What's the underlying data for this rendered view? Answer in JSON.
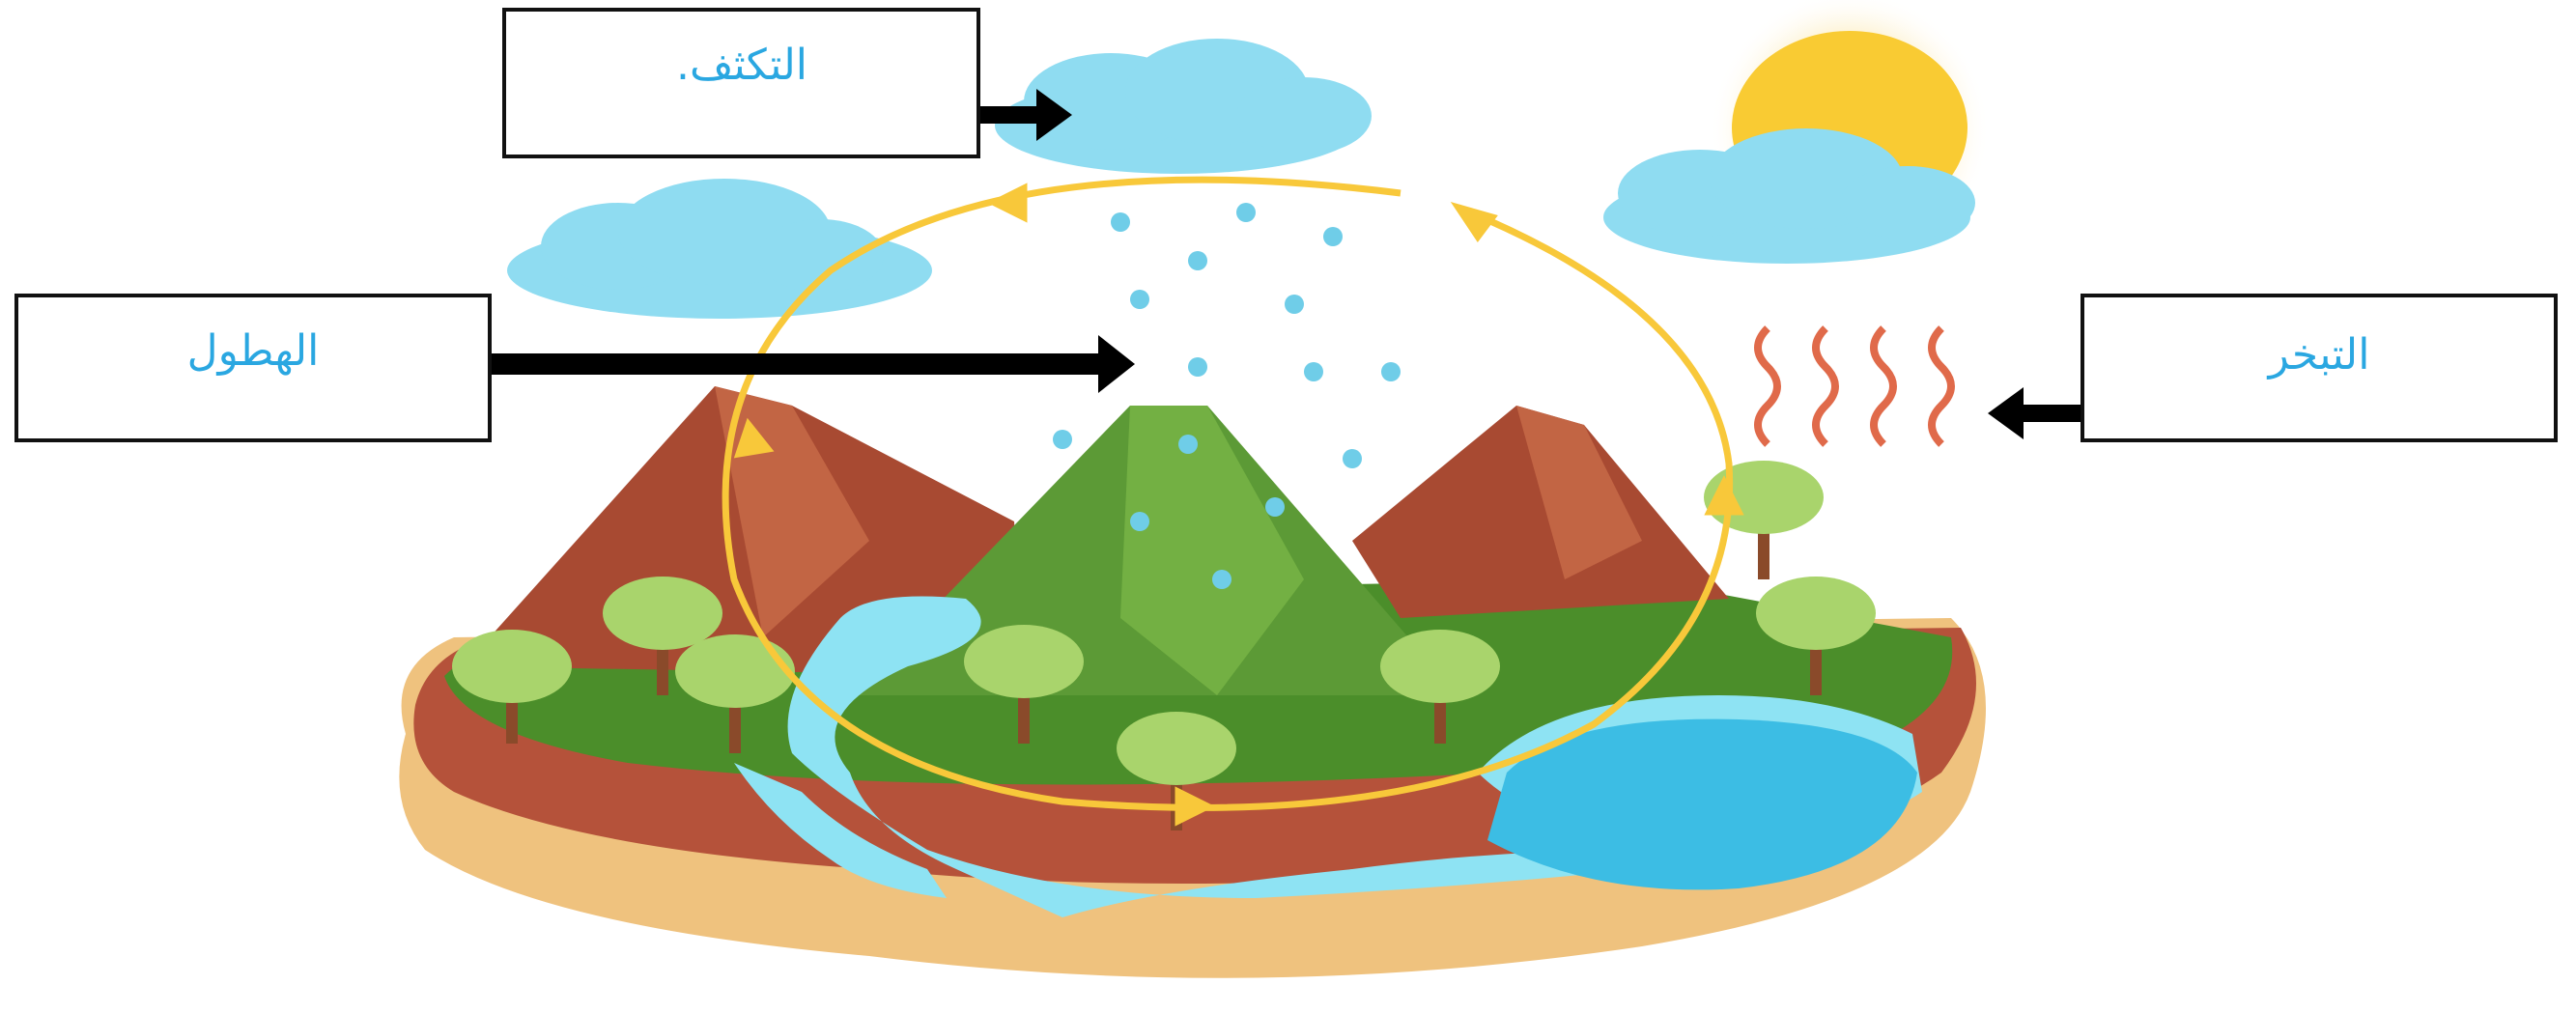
{
  "nodes": [
    {
      "label": "التكثف."
    },
    {
      "label": "الهطول"
    },
    {
      "label": "التبخر"
    }
  ]
}
